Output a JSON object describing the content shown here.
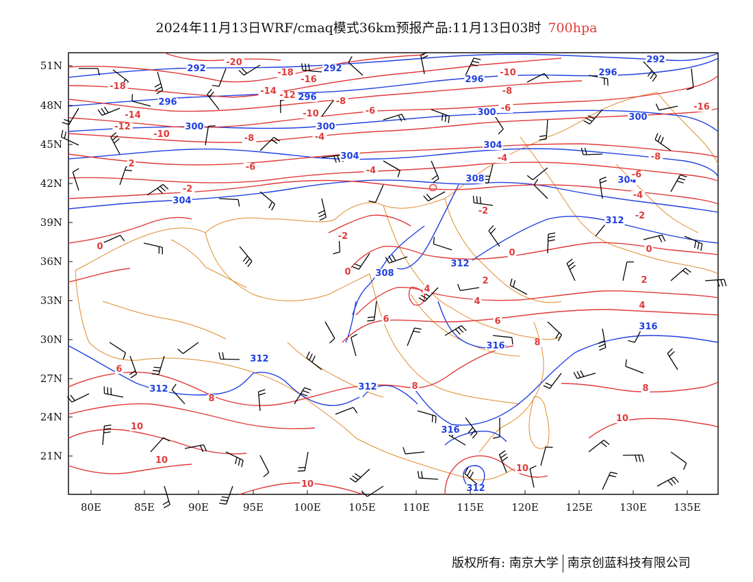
{
  "title": {
    "main": "2024年11月13日WRF/cmaq模式36km预报产品:11月13日03时",
    "level": "700hpa"
  },
  "axes": {
    "lat_labels": [
      "51N",
      "48N",
      "45N",
      "42N",
      "39N",
      "36N",
      "33N",
      "30N",
      "27N",
      "24N",
      "21N"
    ],
    "lon_labels": [
      "80E",
      "85E",
      "90E",
      "95E",
      "100E",
      "105E",
      "110E",
      "115E",
      "120E",
      "125E",
      "130E",
      "135E"
    ]
  },
  "colors": {
    "temperature": "#e03a3a",
    "geopotential": "#1f3fe0",
    "border": "#e08a2a",
    "wind": "#000000"
  },
  "geopotential_labels": [
    "292",
    "296",
    "300",
    "304",
    "308",
    "312",
    "316"
  ],
  "temperature_labels": [
    "-20",
    "-18",
    "-16",
    "-14",
    "-12",
    "-10",
    "-8",
    "-6",
    "-4",
    "-2",
    "0",
    "2",
    "4",
    "6",
    "8",
    "10"
  ],
  "footer": {
    "left": "版权所有: 南京大学",
    "right": "南京创蓝科技有限公司"
  }
}
